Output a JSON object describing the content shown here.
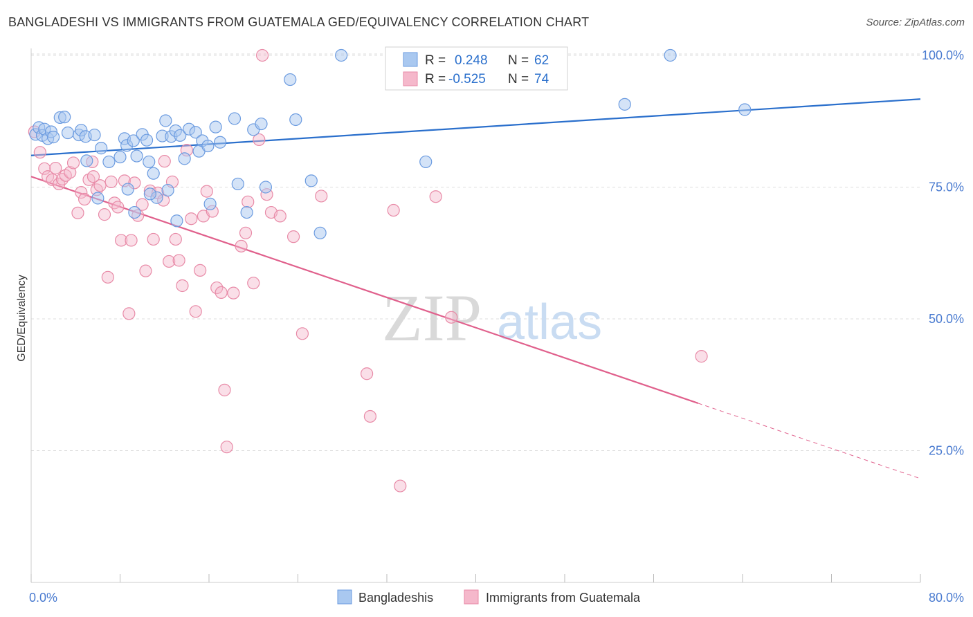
{
  "title": "BANGLADESHI VS IMMIGRANTS FROM GUATEMALA GED/EQUIVALENCY CORRELATION CHART",
  "source": "Source: ZipAtlas.com",
  "colors": {
    "blue_fill": "#a9c8f0",
    "blue_stroke": "#6b9be0",
    "blue_line": "#2a6fcc",
    "pink_fill": "#f5b8cb",
    "pink_stroke": "#e88aa7",
    "pink_line": "#e0608c",
    "axis_label": "#4a7bd0",
    "grid": "#dcdcdc"
  },
  "legend": {
    "rows": [
      {
        "r_label": "R =",
        "r_value": "0.248",
        "n_label": "N =",
        "n_value": "62"
      },
      {
        "r_label": "R =",
        "r_value": "-0.525",
        "n_label": "N =",
        "n_value": "74"
      }
    ]
  },
  "watermark": {
    "zip": "ZIP",
    "atlas": "atlas"
  },
  "chart_data": {
    "type": "scatter",
    "title": "BANGLADESHI VS IMMIGRANTS FROM GUATEMALA GED/EQUIVALENCY CORRELATION CHART",
    "xlabel": "",
    "ylabel": "GED/Equivalency",
    "xlim": [
      0,
      80
    ],
    "ylim": [
      0,
      105
    ],
    "x_tick_labels": [
      "0.0%",
      "80.0%"
    ],
    "y_ticks": [
      25,
      50,
      75,
      100
    ],
    "y_tick_labels": [
      "25.0%",
      "50.0%",
      "75.0%",
      "100.0%"
    ],
    "grid": true,
    "legend_position": "top-center",
    "series": [
      {
        "name": "Bangladeshis",
        "color": "#a9c8f0",
        "points": [
          [
            0.4,
            85.0
          ],
          [
            0.7,
            86.3
          ],
          [
            1.0,
            84.8
          ],
          [
            1.2,
            86.0
          ],
          [
            1.5,
            84.2
          ],
          [
            1.8,
            85.5
          ],
          [
            2.0,
            84.5
          ],
          [
            2.6,
            88.2
          ],
          [
            3.0,
            88.3
          ],
          [
            3.3,
            85.3
          ],
          [
            4.3,
            84.9
          ],
          [
            4.5,
            85.8
          ],
          [
            4.9,
            84.6
          ],
          [
            5.0,
            80.0
          ],
          [
            5.7,
            84.9
          ],
          [
            6.3,
            82.4
          ],
          [
            7.0,
            79.8
          ],
          [
            8.0,
            80.7
          ],
          [
            8.4,
            84.2
          ],
          [
            8.6,
            82.9
          ],
          [
            9.2,
            83.8
          ],
          [
            9.5,
            80.9
          ],
          [
            10.0,
            85.0
          ],
          [
            10.4,
            83.9
          ],
          [
            10.6,
            79.8
          ],
          [
            11.0,
            77.6
          ],
          [
            11.3,
            73.0
          ],
          [
            11.8,
            84.7
          ],
          [
            12.1,
            87.6
          ],
          [
            12.6,
            84.6
          ],
          [
            13.0,
            85.7
          ],
          [
            13.4,
            84.8
          ],
          [
            13.8,
            80.4
          ],
          [
            14.2,
            86.0
          ],
          [
            14.8,
            85.4
          ],
          [
            15.1,
            81.8
          ],
          [
            15.4,
            83.8
          ],
          [
            15.9,
            82.8
          ],
          [
            16.1,
            71.8
          ],
          [
            16.6,
            86.4
          ],
          [
            17.0,
            83.5
          ],
          [
            18.3,
            88.0
          ],
          [
            18.6,
            75.6
          ],
          [
            19.4,
            70.2
          ],
          [
            20.0,
            85.9
          ],
          [
            20.7,
            87.0
          ],
          [
            21.1,
            75.0
          ],
          [
            23.3,
            95.4
          ],
          [
            23.8,
            87.8
          ],
          [
            25.2,
            76.2
          ],
          [
            26.0,
            66.3
          ],
          [
            27.9,
            100.0
          ],
          [
            35.5,
            79.8
          ],
          [
            53.4,
            90.7
          ],
          [
            57.5,
            100.0
          ],
          [
            64.2,
            89.7
          ],
          [
            6.0,
            72.9
          ],
          [
            8.7,
            74.6
          ],
          [
            9.3,
            70.2
          ],
          [
            10.7,
            73.7
          ],
          [
            12.3,
            74.4
          ],
          [
            13.1,
            68.6
          ]
        ]
      },
      {
        "name": "Immigrants from Guatemala",
        "color": "#f5b8cb",
        "points": [
          [
            0.3,
            85.5
          ],
          [
            0.8,
            81.6
          ],
          [
            1.2,
            78.5
          ],
          [
            1.5,
            77.0
          ],
          [
            1.9,
            76.4
          ],
          [
            2.2,
            78.6
          ],
          [
            2.5,
            75.6
          ],
          [
            2.8,
            76.5
          ],
          [
            3.1,
            77.2
          ],
          [
            3.5,
            77.8
          ],
          [
            3.8,
            79.6
          ],
          [
            4.2,
            70.1
          ],
          [
            4.5,
            74.0
          ],
          [
            4.8,
            72.7
          ],
          [
            5.2,
            76.4
          ],
          [
            5.5,
            79.8
          ],
          [
            5.9,
            74.5
          ],
          [
            6.2,
            75.3
          ],
          [
            6.6,
            69.8
          ],
          [
            6.9,
            57.9
          ],
          [
            7.2,
            76.0
          ],
          [
            7.5,
            72.0
          ],
          [
            7.8,
            71.2
          ],
          [
            8.1,
            64.9
          ],
          [
            8.4,
            76.2
          ],
          [
            8.8,
            51.0
          ],
          [
            9.0,
            64.9
          ],
          [
            9.3,
            75.8
          ],
          [
            9.6,
            69.6
          ],
          [
            10.0,
            71.7
          ],
          [
            10.3,
            59.1
          ],
          [
            10.7,
            74.3
          ],
          [
            11.0,
            65.1
          ],
          [
            11.4,
            73.9
          ],
          [
            12.0,
            79.9
          ],
          [
            12.4,
            60.9
          ],
          [
            12.7,
            76.0
          ],
          [
            13.0,
            65.1
          ],
          [
            13.3,
            61.1
          ],
          [
            13.6,
            56.3
          ],
          [
            14.0,
            82.0
          ],
          [
            14.4,
            69.0
          ],
          [
            14.8,
            51.4
          ],
          [
            15.2,
            59.2
          ],
          [
            15.5,
            69.5
          ],
          [
            15.8,
            74.2
          ],
          [
            16.3,
            70.4
          ],
          [
            16.7,
            55.9
          ],
          [
            17.1,
            55.0
          ],
          [
            17.4,
            36.5
          ],
          [
            17.6,
            25.7
          ],
          [
            18.2,
            54.9
          ],
          [
            18.9,
            63.8
          ],
          [
            19.3,
            66.3
          ],
          [
            19.5,
            72.2
          ],
          [
            20.0,
            56.8
          ],
          [
            20.5,
            84.0
          ],
          [
            21.2,
            73.6
          ],
          [
            21.6,
            70.2
          ],
          [
            22.4,
            69.5
          ],
          [
            23.6,
            65.6
          ],
          [
            24.4,
            47.2
          ],
          [
            26.1,
            73.3
          ],
          [
            30.2,
            39.6
          ],
          [
            30.5,
            31.5
          ],
          [
            32.6,
            70.6
          ],
          [
            33.2,
            18.3
          ],
          [
            36.4,
            73.2
          ],
          [
            37.8,
            50.3
          ],
          [
            37.3,
            100.0
          ],
          [
            60.3,
            42.9
          ],
          [
            20.8,
            100.0
          ],
          [
            5.6,
            77.0
          ],
          [
            11.9,
            72.5
          ]
        ]
      }
    ],
    "trend_lines": [
      {
        "series": "Bangladeshis",
        "x": [
          0,
          80
        ],
        "y": [
          81.0,
          91.7
        ],
        "style": "solid"
      },
      {
        "series": "Immigrants from Guatemala",
        "x": [
          0,
          60
        ],
        "y": [
          77.0,
          34.0
        ],
        "style": "solid"
      },
      {
        "series": "Immigrants from Guatemala",
        "x": [
          60,
          80
        ],
        "y": [
          34.0,
          19.7
        ],
        "style": "dashed"
      }
    ]
  }
}
